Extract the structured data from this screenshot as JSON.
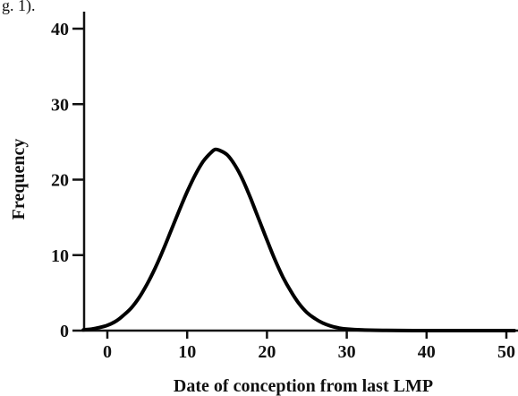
{
  "corner_text": "g. 1).",
  "chart_data": {
    "type": "line",
    "xlabel": "Date of conception from last LMP",
    "ylabel": "Frequency",
    "xlim": [
      -3,
      51
    ],
    "ylim": [
      0,
      42
    ],
    "x_ticks": [
      0,
      10,
      20,
      30,
      40,
      50
    ],
    "x_tick_labels": [
      "0",
      "10",
      "20",
      "30",
      "40",
      "50"
    ],
    "y_ticks": [
      0,
      10,
      20,
      30,
      40
    ],
    "y_tick_labels": [
      "0",
      "10",
      "20",
      "30",
      "40"
    ],
    "grid": false,
    "series": [
      {
        "color": "#000000",
        "x": [
          -3,
          -2,
          -1,
          0,
          1,
          2,
          3,
          4,
          5,
          6,
          7,
          8,
          9,
          10,
          11,
          12,
          13,
          13.5,
          14,
          15,
          16,
          17,
          18,
          19,
          20,
          21,
          22,
          23,
          24,
          25,
          26,
          27,
          28,
          29,
          30,
          32,
          35,
          40,
          45,
          51
        ],
        "y": [
          0.1,
          0.2,
          0.4,
          0.7,
          1.2,
          2.0,
          3.0,
          4.4,
          6.2,
          8.3,
          10.7,
          13.3,
          15.9,
          18.4,
          20.6,
          22.4,
          23.6,
          24.0,
          23.9,
          23.3,
          21.9,
          19.9,
          17.4,
          14.7,
          12.0,
          9.4,
          7.1,
          5.2,
          3.6,
          2.4,
          1.6,
          1.0,
          0.6,
          0.35,
          0.2,
          0.08,
          0.02,
          0.0,
          0.0,
          0.0
        ]
      }
    ]
  }
}
